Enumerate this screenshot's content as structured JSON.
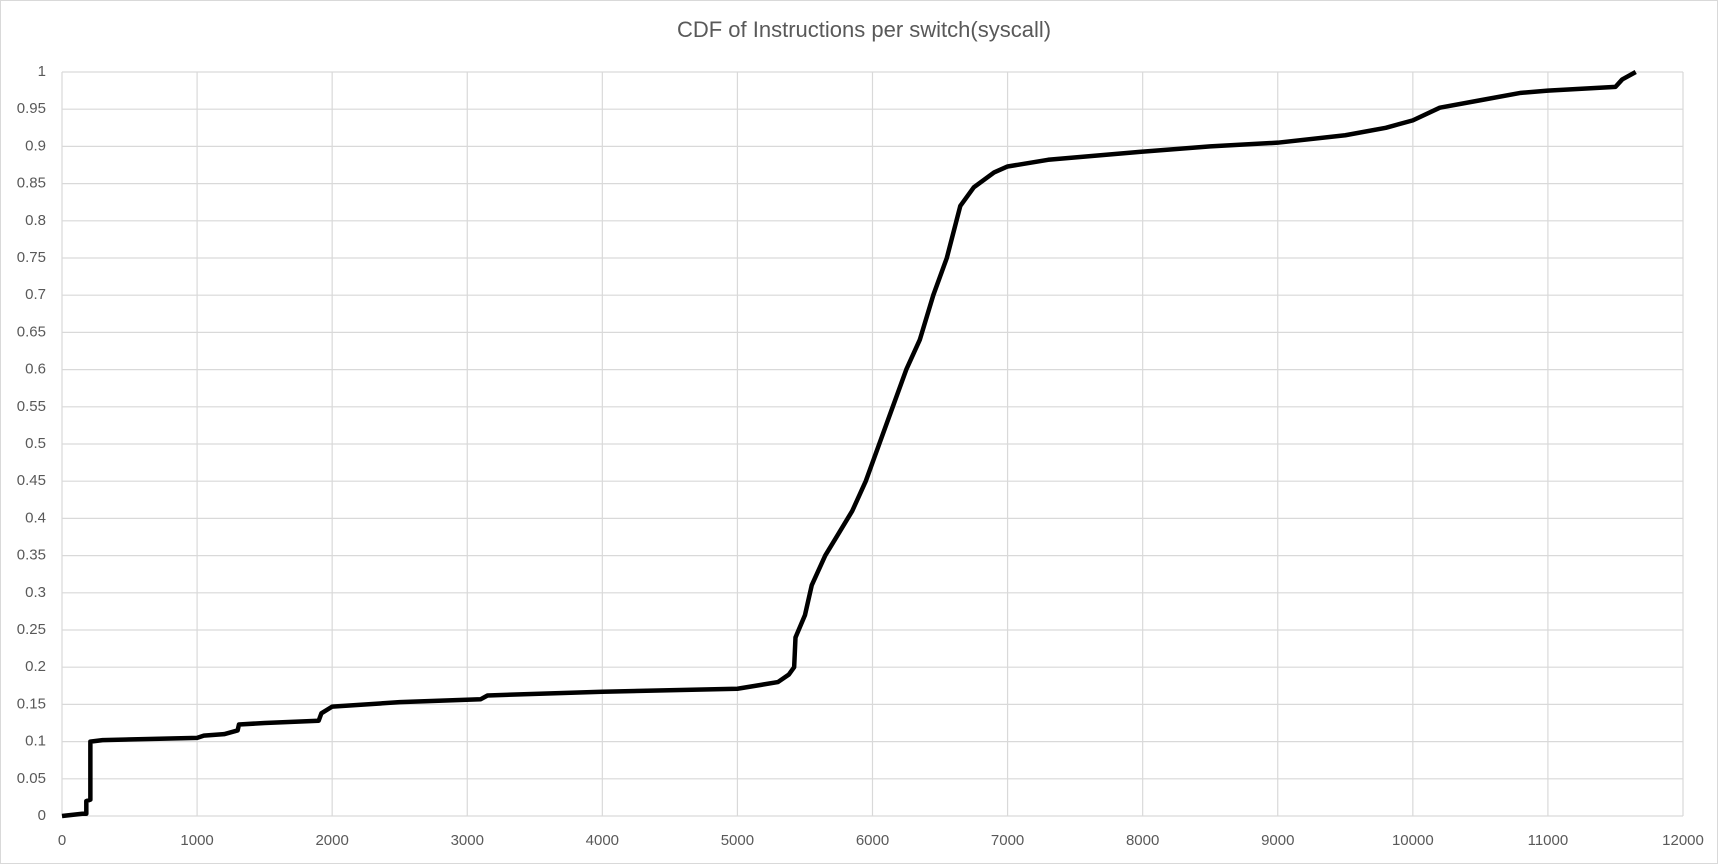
{
  "chart_data": {
    "type": "line",
    "title": "CDF of Instructions per switch(syscall)",
    "x": [
      0,
      150,
      180,
      180,
      210,
      210,
      300,
      1000,
      1050,
      1200,
      1300,
      1310,
      1500,
      1900,
      1920,
      2000,
      2500,
      3100,
      3150,
      4000,
      5000,
      5300,
      5380,
      5420,
      5430,
      5500,
      5550,
      5650,
      5750,
      5850,
      5950,
      6050,
      6150,
      6250,
      6350,
      6450,
      6550,
      6650,
      6750,
      6900,
      7000,
      7300,
      8000,
      8500,
      9000,
      9500,
      9800,
      10000,
      10200,
      10500,
      10800,
      11000,
      11500,
      11550,
      11650
    ],
    "series": [
      {
        "name": "CDF",
        "color": "#000000",
        "values": [
          0,
          0.003,
          0.003,
          0.02,
          0.022,
          0.1,
          0.102,
          0.105,
          0.108,
          0.11,
          0.115,
          0.123,
          0.125,
          0.128,
          0.138,
          0.147,
          0.153,
          0.157,
          0.162,
          0.167,
          0.171,
          0.18,
          0.19,
          0.2,
          0.24,
          0.27,
          0.31,
          0.35,
          0.38,
          0.41,
          0.45,
          0.5,
          0.55,
          0.6,
          0.64,
          0.7,
          0.75,
          0.82,
          0.845,
          0.865,
          0.873,
          0.882,
          0.893,
          0.9,
          0.905,
          0.915,
          0.925,
          0.935,
          0.952,
          0.962,
          0.972,
          0.975,
          0.98,
          0.99,
          1
        ]
      }
    ],
    "xlim": [
      0,
      12000
    ],
    "xticks": [
      0,
      1000,
      2000,
      3000,
      4000,
      5000,
      6000,
      7000,
      8000,
      9000,
      10000,
      11000,
      12000
    ],
    "ylim": [
      0,
      1
    ],
    "yticks": [
      0,
      0.05,
      0.1,
      0.15,
      0.2,
      0.25,
      0.3,
      0.35,
      0.4,
      0.45,
      0.5,
      0.55,
      0.6,
      0.65,
      0.7,
      0.75,
      0.8,
      0.85,
      0.9,
      0.95,
      1
    ],
    "grid": true
  }
}
